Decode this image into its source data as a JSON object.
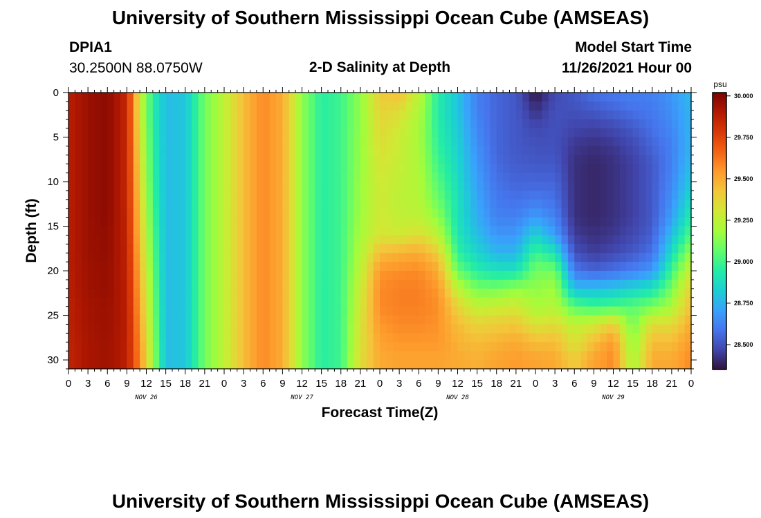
{
  "header": {
    "title": "University of Southern Mississippi Ocean Cube (AMSEAS)",
    "station_id": "DPIA1",
    "coords": "30.2500N  88.0750W",
    "plot_name": "2-D Salinity at Depth",
    "model_start_label": "Model Start Time",
    "model_start_value": "11/26/2021 Hour 00"
  },
  "footer": {
    "title": "University of Southern Mississippi Ocean Cube (AMSEAS)"
  },
  "chart_data": {
    "type": "heatmap",
    "title": "2-D Salinity at Depth",
    "xlabel": "Forecast Time(Z)",
    "ylabel": "Depth (ft)",
    "x_hours_range": [
      0,
      96
    ],
    "y_range": [
      0,
      31
    ],
    "x_tick_labels": [
      "0",
      "3",
      "6",
      "9",
      "12",
      "15",
      "18",
      "21",
      "0",
      "3",
      "6",
      "9",
      "12",
      "15",
      "18",
      "21",
      "0",
      "3",
      "6",
      "9",
      "12",
      "15",
      "18",
      "21",
      "0",
      "3",
      "6",
      "9",
      "12",
      "15",
      "18",
      "21",
      "0"
    ],
    "y_tick_labels": [
      "0",
      "5",
      "10",
      "15",
      "20",
      "25",
      "30"
    ],
    "day_labels": [
      "NOV 26",
      "NOV 27",
      "NOV 28",
      "NOV 29"
    ],
    "colorbar": {
      "unit": "psu",
      "range": [
        28.35,
        30.02
      ],
      "tick_labels": [
        "30.000",
        "29.750",
        "29.500",
        "29.250",
        "29.000",
        "28.750",
        "28.500"
      ],
      "colors": [
        "#30123b",
        "#4145ab",
        "#4675ed",
        "#39a2fc",
        "#1bcfd4",
        "#24eca6",
        "#61fc6c",
        "#a4fc3b",
        "#d1e834",
        "#f3c63a",
        "#fe9b2d",
        "#f36315",
        "#d93806",
        "#b11901",
        "#7a0402"
      ]
    },
    "depth_levels_ft": [
      0,
      2,
      4,
      6,
      8,
      10,
      12,
      14,
      16,
      18,
      20,
      22,
      24,
      26,
      28,
      30
    ],
    "profiles": [
      {
        "hour": 0,
        "sal": [
          29.88,
          29.88,
          29.88,
          29.88,
          29.88,
          29.88,
          29.88,
          29.88,
          29.88,
          29.88,
          29.88,
          29.88,
          29.87,
          29.87,
          29.86,
          29.86
        ]
      },
      {
        "hour": 3,
        "sal": [
          29.95,
          29.95,
          29.95,
          29.95,
          29.95,
          29.95,
          29.95,
          29.95,
          29.95,
          29.95,
          29.94,
          29.94,
          29.93,
          29.93,
          29.92,
          29.92
        ]
      },
      {
        "hour": 6,
        "sal": [
          29.98,
          29.98,
          29.98,
          29.98,
          29.98,
          29.98,
          29.98,
          29.98,
          29.97,
          29.97,
          29.96,
          29.96,
          29.95,
          29.95,
          29.94,
          29.94
        ]
      },
      {
        "hour": 9,
        "sal": [
          29.85,
          29.85,
          29.85,
          29.85,
          29.85,
          29.85,
          29.85,
          29.86,
          29.86,
          29.87,
          29.87,
          29.88,
          29.88,
          29.88,
          29.88,
          29.88
        ]
      },
      {
        "hour": 11,
        "sal": [
          29.3,
          29.3,
          29.32,
          29.34,
          29.36,
          29.38,
          29.4,
          29.42,
          29.44,
          29.46,
          29.48,
          29.5,
          29.52,
          29.54,
          29.56,
          29.58
        ]
      },
      {
        "hour": 13,
        "sal": [
          28.95,
          28.94,
          28.95,
          28.96,
          28.97,
          28.98,
          29.0,
          29.02,
          29.04,
          29.06,
          29.08,
          29.1,
          29.12,
          29.14,
          29.16,
          29.18
        ]
      },
      {
        "hour": 15,
        "sal": [
          28.78,
          28.78,
          28.78,
          28.78,
          28.78,
          28.78,
          28.78,
          28.78,
          28.78,
          28.78,
          28.78,
          28.78,
          28.78,
          28.78,
          28.78,
          28.78
        ]
      },
      {
        "hour": 18,
        "sal": [
          28.8,
          28.8,
          28.8,
          28.8,
          28.8,
          28.8,
          28.8,
          28.8,
          28.8,
          28.8,
          28.8,
          28.8,
          28.8,
          28.8,
          28.8,
          28.8
        ]
      },
      {
        "hour": 21,
        "sal": [
          29.1,
          29.1,
          29.1,
          29.1,
          29.1,
          29.1,
          29.1,
          29.1,
          29.1,
          29.1,
          29.1,
          29.1,
          29.1,
          29.1,
          29.1,
          29.1
        ]
      },
      {
        "hour": 24,
        "sal": [
          29.25,
          29.25,
          29.25,
          29.25,
          29.25,
          29.25,
          29.25,
          29.25,
          29.25,
          29.25,
          29.25,
          29.25,
          29.25,
          29.25,
          29.25,
          29.25
        ]
      },
      {
        "hour": 27,
        "sal": [
          29.45,
          29.45,
          29.45,
          29.45,
          29.45,
          29.45,
          29.45,
          29.45,
          29.45,
          29.45,
          29.45,
          29.45,
          29.45,
          29.45,
          29.45,
          29.45
        ]
      },
      {
        "hour": 30,
        "sal": [
          29.58,
          29.58,
          29.58,
          29.58,
          29.58,
          29.58,
          29.58,
          29.58,
          29.58,
          29.58,
          29.58,
          29.58,
          29.58,
          29.58,
          29.58,
          29.58
        ]
      },
      {
        "hour": 33,
        "sal": [
          29.5,
          29.5,
          29.5,
          29.5,
          29.5,
          29.5,
          29.5,
          29.5,
          29.5,
          29.5,
          29.5,
          29.5,
          29.5,
          29.5,
          29.5,
          29.5
        ]
      },
      {
        "hour": 36,
        "sal": [
          29.15,
          29.15,
          29.15,
          29.15,
          29.15,
          29.15,
          29.15,
          29.15,
          29.15,
          29.15,
          29.15,
          29.15,
          29.15,
          29.15,
          29.15,
          29.15
        ]
      },
      {
        "hour": 39,
        "sal": [
          28.95,
          28.95,
          28.95,
          28.95,
          28.95,
          28.95,
          28.95,
          28.95,
          28.95,
          28.95,
          28.95,
          28.95,
          28.95,
          28.95,
          28.95,
          28.95
        ]
      },
      {
        "hour": 42,
        "sal": [
          29.0,
          29.0,
          29.0,
          29.0,
          29.0,
          29.0,
          29.0,
          29.0,
          29.0,
          29.0,
          29.0,
          29.0,
          29.0,
          29.0,
          29.0,
          29.0
        ]
      },
      {
        "hour": 45,
        "sal": [
          29.15,
          29.15,
          29.15,
          29.16,
          29.16,
          29.17,
          29.17,
          29.18,
          29.2,
          29.22,
          29.25,
          29.28,
          29.3,
          29.32,
          29.33,
          29.35
        ]
      },
      {
        "hour": 48,
        "sal": [
          29.4,
          29.38,
          29.36,
          29.34,
          29.32,
          29.3,
          29.3,
          29.3,
          29.32,
          29.45,
          29.55,
          29.58,
          29.58,
          29.55,
          29.52,
          29.5
        ]
      },
      {
        "hour": 51,
        "sal": [
          29.45,
          29.35,
          29.3,
          29.28,
          29.27,
          29.26,
          29.25,
          29.26,
          29.3,
          29.48,
          29.57,
          29.6,
          29.6,
          29.58,
          29.55,
          29.52
        ]
      },
      {
        "hour": 54,
        "sal": [
          29.25,
          29.22,
          29.2,
          29.2,
          29.21,
          29.22,
          29.23,
          29.25,
          29.35,
          29.5,
          29.58,
          29.6,
          29.6,
          29.58,
          29.55,
          29.52
        ]
      },
      {
        "hour": 57,
        "sal": [
          28.95,
          28.94,
          28.95,
          28.97,
          29.0,
          29.04,
          29.08,
          29.15,
          29.25,
          29.4,
          29.5,
          29.55,
          29.57,
          29.56,
          29.55,
          29.52
        ]
      },
      {
        "hour": 60,
        "sal": [
          28.8,
          28.8,
          28.82,
          28.84,
          28.86,
          28.88,
          28.9,
          28.9,
          28.92,
          28.97,
          29.08,
          29.25,
          29.38,
          29.45,
          29.48,
          29.5
        ]
      },
      {
        "hour": 63,
        "sal": [
          28.62,
          28.62,
          28.64,
          28.66,
          28.68,
          28.7,
          28.72,
          28.74,
          28.78,
          28.85,
          28.95,
          29.1,
          29.25,
          29.38,
          29.45,
          29.48
        ]
      },
      {
        "hour": 66,
        "sal": [
          28.55,
          28.55,
          28.55,
          28.55,
          28.56,
          28.58,
          28.6,
          28.62,
          28.68,
          28.76,
          28.9,
          29.1,
          29.28,
          29.4,
          29.48,
          29.52
        ]
      },
      {
        "hour": 69,
        "sal": [
          28.52,
          28.52,
          28.52,
          28.52,
          28.53,
          28.55,
          28.58,
          28.62,
          28.68,
          28.76,
          28.9,
          29.15,
          29.3,
          29.42,
          29.5,
          29.54
        ]
      },
      {
        "hour": 72,
        "sal": [
          28.36,
          28.42,
          28.48,
          28.5,
          28.52,
          28.55,
          28.6,
          28.7,
          28.85,
          29.0,
          29.1,
          29.15,
          29.2,
          29.32,
          29.45,
          29.52
        ]
      },
      {
        "hour": 75,
        "sal": [
          28.48,
          28.5,
          28.5,
          28.5,
          28.52,
          28.55,
          28.58,
          28.62,
          28.7,
          28.9,
          29.1,
          29.18,
          29.22,
          29.35,
          29.45,
          29.5
        ]
      },
      {
        "hour": 78,
        "sal": [
          28.52,
          28.5,
          28.47,
          28.44,
          28.42,
          28.42,
          28.42,
          28.42,
          28.45,
          28.5,
          28.6,
          28.78,
          29.05,
          29.25,
          29.32,
          29.4
        ]
      },
      {
        "hour": 81,
        "sal": [
          28.58,
          28.52,
          28.46,
          28.42,
          28.4,
          28.4,
          28.4,
          28.4,
          28.42,
          28.45,
          28.55,
          28.78,
          29.0,
          29.3,
          29.45,
          29.52
        ]
      },
      {
        "hour": 84,
        "sal": [
          28.6,
          28.55,
          28.48,
          28.44,
          28.42,
          28.42,
          28.42,
          28.42,
          28.44,
          28.48,
          28.58,
          28.8,
          29.02,
          29.4,
          29.55,
          29.58
        ]
      },
      {
        "hour": 87,
        "sal": [
          28.62,
          28.58,
          28.52,
          28.48,
          28.46,
          28.46,
          28.46,
          28.46,
          28.48,
          28.52,
          28.62,
          28.85,
          29.05,
          29.1,
          29.15,
          29.2
        ]
      },
      {
        "hour": 90,
        "sal": [
          28.62,
          28.6,
          28.58,
          28.55,
          28.52,
          28.52,
          28.52,
          28.52,
          28.54,
          28.58,
          28.68,
          28.9,
          29.1,
          29.35,
          29.45,
          29.5
        ]
      },
      {
        "hour": 93,
        "sal": [
          28.68,
          28.66,
          28.64,
          28.62,
          28.62,
          28.64,
          28.66,
          28.7,
          28.78,
          28.88,
          29.0,
          29.1,
          29.2,
          29.35,
          29.45,
          29.5
        ]
      },
      {
        "hour": 96,
        "sal": [
          28.78,
          28.76,
          28.76,
          28.76,
          28.78,
          28.82,
          28.88,
          28.95,
          29.05,
          29.18,
          29.3,
          29.4,
          29.45,
          29.5,
          29.55,
          29.58
        ]
      }
    ]
  }
}
